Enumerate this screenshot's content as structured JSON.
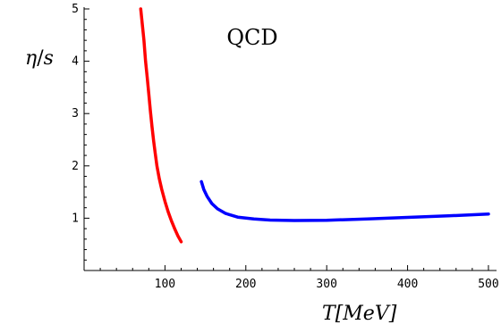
{
  "chart_data": {
    "type": "line",
    "title": "QCD",
    "xlabel_var": "T",
    "xlabel_unit": "[MeV]",
    "ylabel_num": "η",
    "ylabel_den": "s",
    "xlim": [
      0,
      510
    ],
    "ylim": [
      0,
      5
    ],
    "x_ticks": [
      100,
      200,
      300,
      400,
      500
    ],
    "y_ticks": [
      1,
      2,
      3,
      4,
      5
    ],
    "x_ticks_labels": [
      "100",
      "200",
      "300",
      "400",
      "500"
    ],
    "y_ticks_labels": [
      "1",
      "2",
      "3",
      "4",
      "5"
    ],
    "grid": false,
    "series": [
      {
        "color": "#ff0000",
        "points": [
          [
            70,
            5.0
          ],
          [
            72,
            4.7
          ],
          [
            74,
            4.4
          ],
          [
            76,
            4.0
          ],
          [
            78,
            3.7
          ],
          [
            80,
            3.38
          ],
          [
            82,
            3.05
          ],
          [
            84,
            2.75
          ],
          [
            86,
            2.48
          ],
          [
            88,
            2.24
          ],
          [
            90,
            2.0
          ],
          [
            93,
            1.75
          ],
          [
            96,
            1.55
          ],
          [
            100,
            1.32
          ],
          [
            104,
            1.12
          ],
          [
            108,
            0.95
          ],
          [
            112,
            0.8
          ],
          [
            116,
            0.66
          ],
          [
            120,
            0.55
          ]
        ]
      },
      {
        "color": "#0000ff",
        "points": [
          [
            145,
            1.7
          ],
          [
            148,
            1.55
          ],
          [
            152,
            1.42
          ],
          [
            158,
            1.28
          ],
          [
            165,
            1.18
          ],
          [
            175,
            1.09
          ],
          [
            190,
            1.02
          ],
          [
            210,
            0.985
          ],
          [
            230,
            0.965
          ],
          [
            260,
            0.955
          ],
          [
            300,
            0.96
          ],
          [
            350,
            0.985
          ],
          [
            400,
            1.015
          ],
          [
            450,
            1.045
          ],
          [
            500,
            1.08
          ]
        ]
      }
    ]
  }
}
